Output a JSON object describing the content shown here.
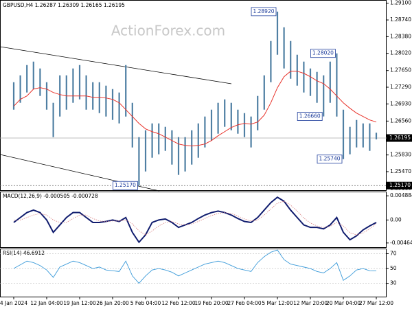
{
  "chart_data": [
    {
      "type": "range",
      "title": "GBPUSD,H4  1.26287 1.26309 1.26165 1.26195",
      "watermark": "ActionForex.com",
      "categories": [
        "4 Jan 2024",
        null,
        null,
        null,
        null,
        "12 Jan 04:00",
        null,
        null,
        null,
        null,
        "19 Jan 12:00",
        null,
        null,
        null,
        null,
        "26 Jan 20:00",
        null,
        null,
        null,
        null,
        "5 Feb 04:00",
        null,
        null,
        null,
        null,
        "12 Feb 12:00",
        null,
        null,
        null,
        null,
        "19 Feb 20:00",
        null,
        null,
        null,
        null,
        "27 Feb 04:00",
        null,
        null,
        null,
        null,
        "5 Mar 12:00",
        null,
        null,
        null,
        null,
        "12 Mar 20:00",
        null,
        null,
        null,
        null,
        "20 Mar 04:00",
        null,
        null,
        null,
        null,
        "27 Mar 12:00"
      ],
      "high": [
        1.27398,
        1.27546,
        1.27768,
        1.27842,
        1.27694,
        1.27398,
        1.26954,
        1.27546,
        1.27546,
        1.27694,
        1.27768,
        1.27546,
        1.27398,
        1.27398,
        1.27324,
        1.2725,
        1.27176,
        1.27768,
        1.26954,
        1.26214,
        1.26362,
        1.2651,
        1.2651,
        1.26436,
        1.26362,
        1.26214,
        1.26214,
        1.26362,
        1.2651,
        1.26658,
        1.26806,
        1.26954,
        1.27028,
        1.26954,
        1.26806,
        1.26732,
        1.26658,
        1.27102,
        1.27546,
        1.28286,
        1.2892,
        1.28582,
        1.28286,
        1.2799,
        1.27842,
        1.27694,
        1.2762,
        1.27546,
        1.27842,
        1.2802,
        1.26806,
        1.26436,
        1.26584,
        1.2651,
        1.2651,
        1.26309
      ],
      "low": [
        1.26806,
        1.26954,
        1.27176,
        1.2725,
        1.27102,
        1.26806,
        1.26214,
        1.26658,
        1.26806,
        1.26954,
        1.27028,
        1.26806,
        1.26806,
        1.26732,
        1.26658,
        1.26584,
        1.2651,
        1.26658,
        1.25992,
        1.2517,
        1.25474,
        1.2577,
        1.25844,
        1.25918,
        1.25622,
        1.254,
        1.25474,
        1.25622,
        1.2577,
        1.25992,
        1.2614,
        1.26288,
        1.26436,
        1.26362,
        1.26288,
        1.26214,
        1.25992,
        1.26362,
        1.26806,
        1.27398,
        1.2799,
        1.27694,
        1.27472,
        1.27324,
        1.27176,
        1.27102,
        1.26954,
        1.2666,
        1.26954,
        1.26658,
        1.2574,
        1.25844,
        1.25992,
        1.25992,
        1.25918,
        1.26165
      ],
      "color": "#4f7fa3",
      "overlay": {
        "color": "#e8322a",
        "values": [
          1.2688,
          1.27028,
          1.27102,
          1.2725,
          1.2728,
          1.2725,
          1.27176,
          1.27132,
          1.27102,
          1.27102,
          1.27102,
          1.27102,
          1.27072,
          1.27072,
          1.27058,
          1.27028,
          1.26954,
          1.26806,
          1.26658,
          1.2651,
          1.26392,
          1.26332,
          1.26288,
          1.26214,
          1.2614,
          1.26066,
          1.26036,
          1.26022,
          1.26036,
          1.26066,
          1.2614,
          1.26244,
          1.26332,
          1.26421,
          1.2648,
          1.2651,
          1.26495,
          1.2654,
          1.26688,
          1.26954,
          1.2728,
          1.27516,
          1.27635,
          1.27635,
          1.2759,
          1.27516,
          1.27428,
          1.27368,
          1.2725,
          1.27102,
          1.26954,
          1.26836,
          1.26732,
          1.26658,
          1.26584,
          1.2654
        ]
      },
      "ylim": [
        1.2507,
        1.2917
      ],
      "yticks": [
        {
          "value": 1.291,
          "label": "1.29100"
        },
        {
          "value": 1.2874,
          "label": "1.28740"
        },
        {
          "value": 1.2838,
          "label": "1.28380"
        },
        {
          "value": 1.2802,
          "label": "1.28020"
        },
        {
          "value": 1.2765,
          "label": "1.27650"
        },
        {
          "value": 1.2729,
          "label": "1.27290"
        },
        {
          "value": 1.2693,
          "label": "1.26930"
        },
        {
          "value": 1.2656,
          "label": "1.26560"
        },
        {
          "value": 1.2583,
          "label": "1.25830"
        },
        {
          "value": 1.2547,
          "label": "1.25470"
        },
        {
          "value": 1.2511,
          "label": "1.25110"
        }
      ],
      "current": {
        "value": 1.26195,
        "label": "1.26195"
      },
      "level": {
        "value": 1.2517,
        "label": "1.25170"
      },
      "annotations": [
        {
          "value": 1.2892,
          "label": "1.28920"
        },
        {
          "value": 1.2802,
          "label": "1.28020"
        },
        {
          "value": 1.2666,
          "label": "1.26660"
        },
        {
          "value": 1.2574,
          "label": "1.25740"
        },
        {
          "value": 1.2517,
          "label": "1.25170"
        }
      ]
    },
    {
      "type": "macd",
      "title": "MACD(12,26,9) -0.000505 -0.000728",
      "series": [
        {
          "color": "#101c6e",
          "values": [
            -0.0005,
            0.0005,
            0.0015,
            0.002,
            0.0015,
            0,
            -0.0025,
            -0.001,
            0.0005,
            0.0015,
            0.0015,
            0.0005,
            -0.0005,
            -0.0005,
            -0.0003,
            0,
            -0.0003,
            0.0005,
            -0.0025,
            -0.0045,
            -0.003,
            -0.0005,
            0,
            0.0002,
            -0.0005,
            -0.0015,
            -0.001,
            -0.0005,
            0.0003,
            0.001,
            0.0015,
            0.0018,
            0.0015,
            0.001,
            0.0003,
            -0.0003,
            -0.0005,
            0.0005,
            0.002,
            0.0035,
            0.0046,
            0.0038,
            0.002,
            0.0005,
            -0.001,
            -0.0015,
            -0.0015,
            -0.0018,
            -0.001,
            0.0005,
            -0.0025,
            -0.004,
            -0.0032,
            -0.002,
            -0.0012,
            -0.000505
          ]
        },
        {
          "color": "#d98080",
          "values": [
            0,
            0,
            0.0005,
            0.001,
            0.0013,
            0.001,
            0,
            -0.0005,
            -0.0005,
            0.0003,
            0.001,
            0.001,
            0.0003,
            -0.0002,
            -0.0003,
            -0.0002,
            -0.0002,
            0,
            -0.0008,
            -0.0022,
            -0.003,
            -0.0022,
            -0.0012,
            -0.0005,
            -0.0003,
            -0.0008,
            -0.001,
            -0.0008,
            -0.0003,
            0.0003,
            0.0009,
            0.0013,
            0.0015,
            0.0013,
            0.0008,
            0.0002,
            -0.0002,
            0,
            0.001,
            0.0022,
            0.0034,
            0.0038,
            0.003,
            0.0018,
            0.0004,
            -0.0006,
            -0.0012,
            -0.0015,
            -0.0013,
            -0.0005,
            -0.0012,
            -0.0026,
            -0.003,
            -0.0026,
            -0.0018,
            -0.000728
          ]
        }
      ],
      "ylim": [
        -0.0055,
        0.0056
      ],
      "yticks": [
        0.004884,
        {
          "value": 0,
          "label": "0.00"
        },
        -0.004645
      ]
    },
    {
      "type": "line",
      "title": "RSI(14) 46.6912",
      "color": "#3a9ad9",
      "values": [
        50,
        55,
        60,
        58,
        54,
        48,
        38,
        52,
        56,
        60,
        58,
        54,
        50,
        52,
        48,
        47,
        46,
        60,
        40,
        30,
        40,
        48,
        50,
        48,
        45,
        40,
        44,
        48,
        52,
        56,
        58,
        60,
        58,
        54,
        50,
        48,
        46,
        58,
        66,
        72,
        75,
        62,
        56,
        54,
        52,
        50,
        46,
        44,
        50,
        58,
        34,
        40,
        48,
        50,
        47,
        46.6912
      ],
      "ylim": [
        12,
        76
      ],
      "yticks": [
        70,
        50,
        30
      ]
    }
  ]
}
